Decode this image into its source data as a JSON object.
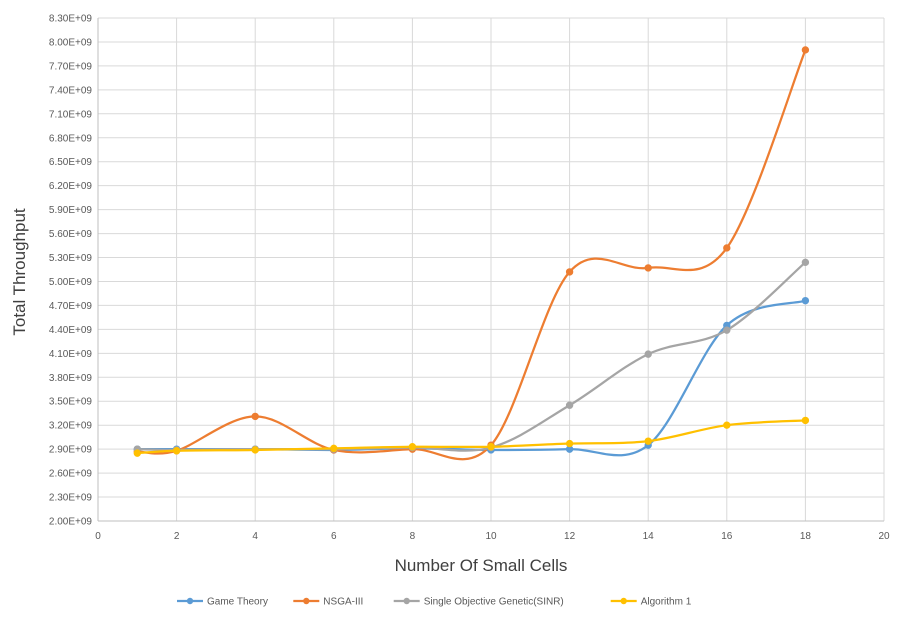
{
  "chart_data": {
    "type": "line",
    "title": "",
    "xlabel": "Number Of Small Cells",
    "ylabel": "Total Throughput",
    "xlim": [
      0,
      20
    ],
    "ylim": [
      2000000000,
      8300000000
    ],
    "x_ticks": [
      0,
      2,
      4,
      6,
      8,
      10,
      12,
      14,
      16,
      18,
      20
    ],
    "x_tick_labels": [
      "0",
      "2",
      "4",
      "6",
      "8",
      "10",
      "12",
      "14",
      "16",
      "18",
      "20"
    ],
    "y_ticks": [
      2000000000,
      2300000000,
      2600000000,
      2900000000,
      3200000000,
      3500000000,
      3800000000,
      4100000000,
      4400000000,
      4700000000,
      5000000000,
      5300000000,
      5600000000,
      5900000000,
      6200000000,
      6500000000,
      6800000000,
      7100000000,
      7400000000,
      7700000000,
      8000000000,
      8300000000
    ],
    "y_tick_labels": [
      "2.00E+09",
      "2.30E+09",
      "2.60E+09",
      "2.90E+09",
      "3.20E+09",
      "3.50E+09",
      "3.80E+09",
      "4.10E+09",
      "4.40E+09",
      "4.70E+09",
      "5.00E+09",
      "5.30E+09",
      "5.60E+09",
      "5.90E+09",
      "6.20E+09",
      "6.50E+09",
      "6.80E+09",
      "7.10E+09",
      "7.40E+09",
      "7.70E+09",
      "8.00E+09",
      "8.30E+09"
    ],
    "grid": true,
    "legend_position": "bottom",
    "series": [
      {
        "name": "Game Theory",
        "color": "#5B9BD5",
        "x": [
          1,
          2,
          4,
          6,
          8,
          10,
          12,
          14,
          16,
          18
        ],
        "y": [
          2900000000,
          2900000000,
          2900000000,
          2890000000,
          2910000000,
          2890000000,
          2900000000,
          2950000000,
          4450000000,
          4760000000
        ]
      },
      {
        "name": "NSGA-III",
        "color": "#ED7D31",
        "x": [
          1,
          2,
          4,
          6,
          8,
          10,
          12,
          14,
          16,
          18
        ],
        "y": [
          2870000000,
          2880000000,
          3310000000,
          2890000000,
          2900000000,
          2950000000,
          5120000000,
          5170000000,
          5420000000,
          7900000000
        ]
      },
      {
        "name": "Single Objective Genetic(SINR)",
        "color": "#A5A5A5",
        "x": [
          1,
          2,
          4,
          6,
          8,
          10,
          12,
          14,
          16,
          18
        ],
        "y": [
          2900000000,
          2890000000,
          2900000000,
          2900000000,
          2920000000,
          2920000000,
          3450000000,
          4090000000,
          4390000000,
          5240000000
        ]
      },
      {
        "name": "Algorithm 1",
        "color": "#FFC000",
        "x": [
          1,
          2,
          4,
          6,
          8,
          10,
          12,
          14,
          16,
          18
        ],
        "y": [
          2850000000,
          2880000000,
          2890000000,
          2910000000,
          2930000000,
          2930000000,
          2970000000,
          3000000000,
          3200000000,
          3260000000
        ]
      }
    ]
  }
}
